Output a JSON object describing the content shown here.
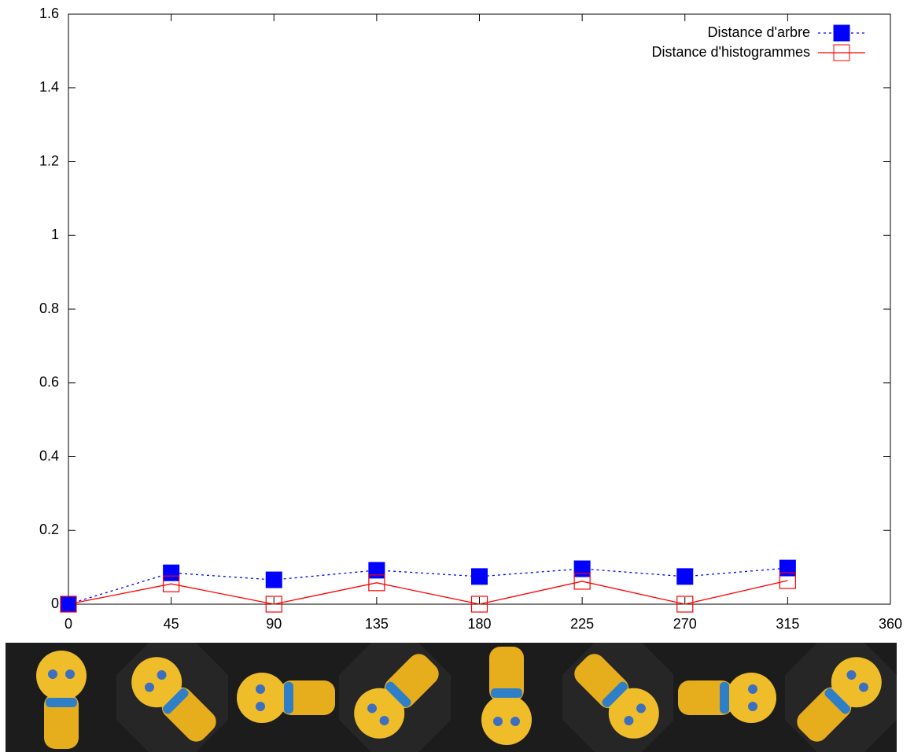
{
  "chart_data": {
    "type": "line",
    "x": [
      0,
      45,
      90,
      135,
      180,
      225,
      270,
      315
    ],
    "series": [
      {
        "name": "Distance d'arbre",
        "color": "#0000ff",
        "marker": "filled-square",
        "dash": "dotted",
        "values": [
          0,
          0.085,
          0.066,
          0.092,
          0.075,
          0.096,
          0.075,
          0.098
        ]
      },
      {
        "name": "Distance d'histogrammes",
        "color": "#ff0000",
        "marker": "open-square",
        "dash": "solid",
        "values": [
          0,
          0.055,
          0,
          0.058,
          0,
          0.062,
          0,
          0.064
        ]
      }
    ],
    "xlim": [
      0,
      360
    ],
    "xticks": [
      0,
      45,
      90,
      135,
      180,
      225,
      270,
      315,
      360
    ],
    "ylim": [
      0,
      1.6
    ],
    "yticks": [
      0,
      0.2,
      0.4,
      0.6,
      0.8,
      1,
      1.2,
      1.4,
      1.6
    ],
    "legend": "top-right",
    "grid": false
  }
}
